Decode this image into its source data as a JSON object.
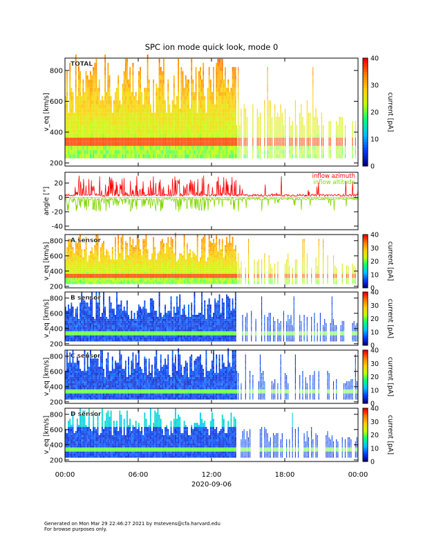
{
  "chart_data": {
    "type": "heatmap",
    "title": "SPC ion mode quick look, mode 0",
    "date_label": "2020-09-06",
    "xlim": [
      0,
      24
    ],
    "x_ticks": [
      {
        "value": 0,
        "label": "00:00"
      },
      {
        "value": 6,
        "label": "06:00"
      },
      {
        "value": 12,
        "label": "12:00"
      },
      {
        "value": 18,
        "label": "18:00"
      },
      {
        "value": 24,
        "label": "00:00"
      }
    ],
    "panels": [
      {
        "kind": "spectrogram",
        "label": "TOTAL",
        "ylabel": "v_eq [km/s]",
        "ylim": [
          180,
          880
        ],
        "yticks": [
          200,
          400,
          600,
          800
        ],
        "colorbar": {
          "label": "current [pA]",
          "range": [
            0,
            40
          ],
          "ticks": [
            0,
            10,
            20,
            30,
            40
          ]
        },
        "palette": "total",
        "core_speed_km_s": 320
      },
      {
        "kind": "line",
        "ylabel": "angle [°]",
        "ylim": [
          -45,
          35
        ],
        "yticks": [
          -40,
          -20,
          0,
          20
        ],
        "series": [
          {
            "name": "inflow azimuth",
            "color": "#ff0000",
            "typical_deg": 3,
            "spike_max_deg": 28
          },
          {
            "name": "inflow altitude",
            "color": "#7fd600",
            "typical_deg": -2,
            "spike_min_deg": -18
          }
        ]
      },
      {
        "kind": "spectrogram",
        "label": "A sensor",
        "ylabel": "v_eq [km/s]",
        "ylim": [
          180,
          880
        ],
        "yticks": [
          200,
          400,
          600,
          800
        ],
        "colorbar": {
          "label": "current [pA]",
          "range": [
            0,
            40
          ],
          "ticks": [
            0,
            10,
            20,
            30,
            40
          ]
        },
        "palette": "sensorA",
        "core_speed_km_s": 320
      },
      {
        "kind": "spectrogram",
        "label": "B sensor",
        "ylabel": "v_eq [km/s]",
        "ylim": [
          180,
          880
        ],
        "yticks": [
          200,
          400,
          600,
          800
        ],
        "colorbar": {
          "label": "current [pA]",
          "range": [
            0,
            40
          ],
          "ticks": [
            0,
            10,
            20,
            30,
            40
          ]
        },
        "palette": "sensorBC",
        "core_speed_km_s": 320
      },
      {
        "kind": "spectrogram",
        "label": "C sensor",
        "ylabel": "v_eq [km/s]",
        "ylim": [
          180,
          880
        ],
        "yticks": [
          200,
          400,
          600,
          800
        ],
        "colorbar": {
          "label": "current [pA]",
          "range": [
            0,
            40
          ],
          "ticks": [
            0,
            10,
            20,
            30,
            40
          ]
        },
        "palette": "sensorBC",
        "core_speed_km_s": 320
      },
      {
        "kind": "spectrogram",
        "label": "D sensor",
        "ylabel": "v_eq [km/s]",
        "ylim": [
          180,
          880
        ],
        "yticks": [
          200,
          400,
          600,
          800
        ],
        "colorbar": {
          "label": "current [pA]",
          "range": [
            0,
            40
          ],
          "ticks": [
            0,
            10,
            20,
            30,
            40
          ]
        },
        "palette": "sensorD",
        "core_speed_km_s": 320
      }
    ],
    "colors": {
      "colormap": [
        "#000080",
        "#0040ff",
        "#00c0ff",
        "#00ff80",
        "#c0ff00",
        "#ffd000",
        "#ff8000",
        "#ff0000"
      ],
      "axis": "#000000"
    }
  },
  "footer": {
    "line1": "Generated on Mon Mar 29 22:46:27 2021 by mstevens@cfa.harvard.edu",
    "line2": "For browse purposes only."
  }
}
